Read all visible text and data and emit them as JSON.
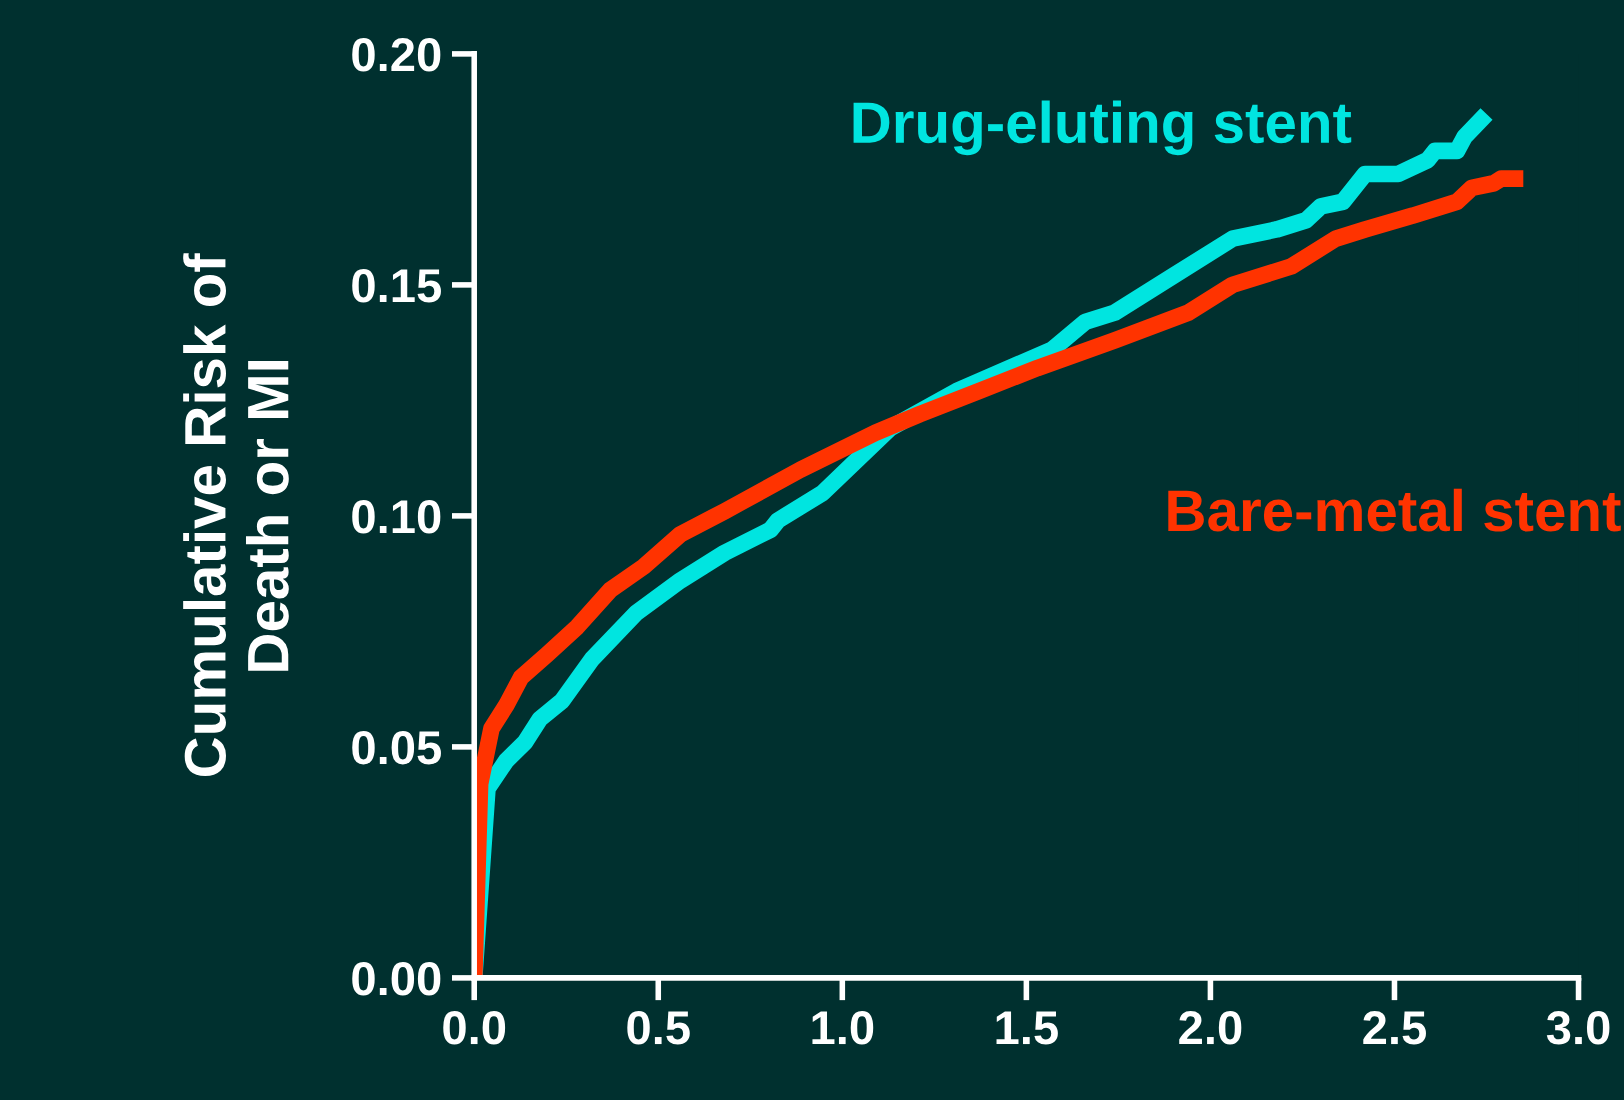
{
  "chart_data": {
    "type": "line",
    "ylabel": "Cumulative Risk of\nDeath or MI",
    "xlim": [
      0,
      3.0
    ],
    "ylim": [
      0,
      0.2
    ],
    "xticks": [
      {
        "value": 0,
        "label": "0.0"
      },
      {
        "value": 0.5,
        "label": "0.5"
      },
      {
        "value": 1.0,
        "label": "1.0"
      },
      {
        "value": 1.5,
        "label": "1.5"
      },
      {
        "value": 2.0,
        "label": "2.0"
      },
      {
        "value": 2.5,
        "label": "2.5"
      },
      {
        "value": 3.0,
        "label": "3.0"
      }
    ],
    "yticks": [
      {
        "value": 0,
        "label": "0.00"
      },
      {
        "value": 0.05,
        "label": "0.05"
      },
      {
        "value": 0.1,
        "label": "0.10"
      },
      {
        "value": 0.15,
        "label": "0.15"
      },
      {
        "value": 0.2,
        "label": "0.20"
      }
    ],
    "grid": false,
    "legend": false,
    "marker": "none",
    "line_style": "solid",
    "series": [
      {
        "name": "Drug-eluting stent",
        "color": "#00e5e0",
        "x": [
          0,
          0.036,
          0.087,
          0.138,
          0.178,
          0.239,
          0.32,
          0.44,
          0.56,
          0.68,
          0.805,
          0.825,
          0.947,
          1.13,
          1.31,
          1.57,
          1.66,
          1.74,
          1.82,
          1.9,
          2.06,
          2.18,
          2.26,
          2.3,
          2.36,
          2.42,
          2.51,
          2.59,
          2.61,
          2.67,
          2.69,
          2.75
        ],
        "values": [
          0,
          0.041,
          0.047,
          0.051,
          0.056,
          0.06,
          0.069,
          0.079,
          0.086,
          0.092,
          0.097,
          0.099,
          0.105,
          0.119,
          0.127,
          0.136,
          0.142,
          0.144,
          0.148,
          0.152,
          0.16,
          0.162,
          0.164,
          0.167,
          0.168,
          0.174,
          0.174,
          0.177,
          0.179,
          0.179,
          0.182,
          0.187
        ]
      },
      {
        "name": "Bare-metal stent",
        "color": "#ff3300",
        "x": [
          0,
          0.016,
          0.047,
          0.087,
          0.127,
          0.198,
          0.28,
          0.37,
          0.46,
          0.56,
          0.68,
          0.886,
          1.09,
          1.21,
          1.37,
          1.53,
          1.74,
          1.94,
          2.02,
          2.06,
          2.22,
          2.34,
          2.42,
          2.55,
          2.67,
          2.71,
          2.77,
          2.79,
          2.85
        ],
        "values": [
          0,
          0.042,
          0.054,
          0.059,
          0.065,
          0.07,
          0.076,
          0.084,
          0.089,
          0.096,
          0.101,
          0.11,
          0.118,
          0.122,
          0.127,
          0.132,
          0.138,
          0.144,
          0.148,
          0.15,
          0.154,
          0.16,
          0.162,
          0.165,
          0.168,
          0.171,
          0.172,
          0.173,
          0.173
        ]
      }
    ]
  }
}
